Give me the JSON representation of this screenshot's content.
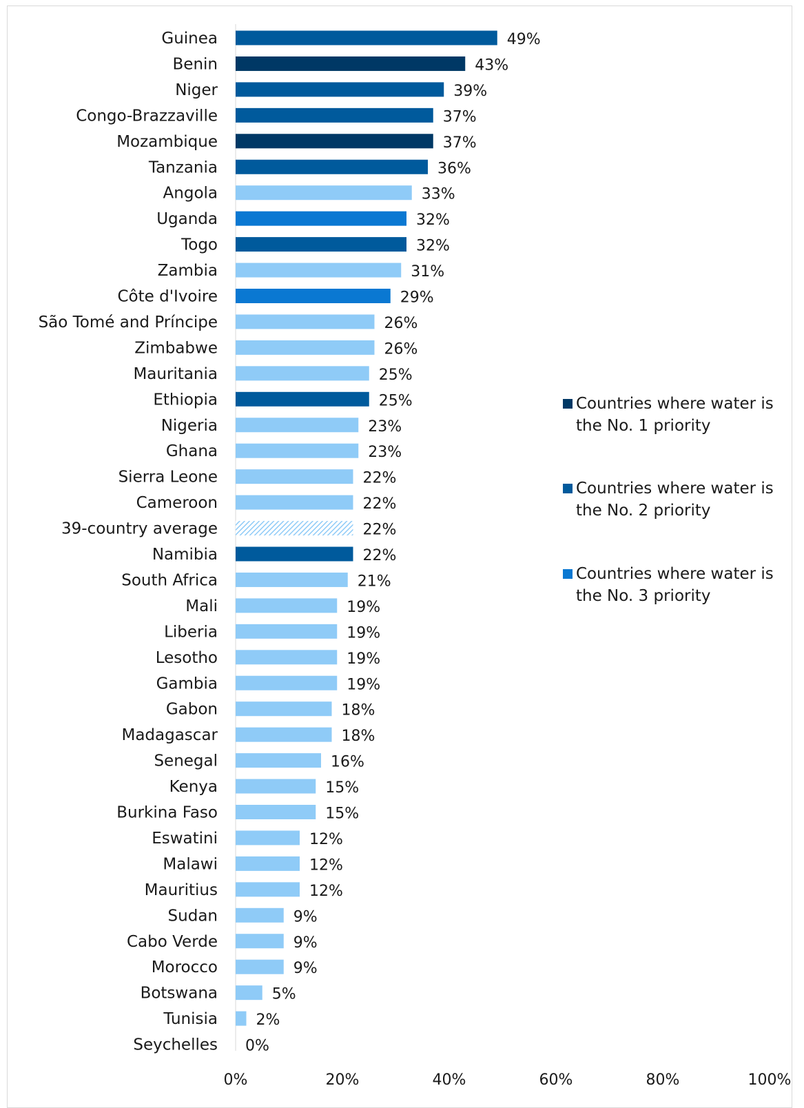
{
  "colors": {
    "priority1": "#003865",
    "priority2": "#005a9c",
    "priority3": "#0a78d2",
    "other": "#8fcbf7",
    "average_hatch": "#8fcbf7",
    "axis": "#d9d9d9"
  },
  "legend": [
    {
      "text": "Countries where water is the No. 1 priority",
      "color_key": "priority1",
      "icon": "square-swatch"
    },
    {
      "text": "Countries where water is the No. 2 priority",
      "color_key": "priority2",
      "icon": "square-swatch"
    },
    {
      "text": "Countries where water is the No. 3 priority",
      "color_key": "priority3",
      "icon": "square-swatch"
    }
  ],
  "chart_data": {
    "type": "bar",
    "orientation": "horizontal",
    "xlim": [
      0,
      100
    ],
    "x_ticks": [
      "0%",
      "20%",
      "40%",
      "60%",
      "80%",
      "100%"
    ],
    "grid": false,
    "legend_position": "right",
    "categories": [
      "Guinea",
      "Benin",
      "Niger",
      "Congo-Brazzaville",
      "Mozambique",
      "Tanzania",
      "Angola",
      "Uganda",
      "Togo",
      "Zambia",
      "Côte d'Ivoire",
      "São Tomé and Príncipe",
      "Zimbabwe",
      "Mauritania",
      "Ethiopia",
      "Nigeria",
      "Ghana",
      "Sierra Leone",
      "Cameroon",
      "39-country average",
      "Namibia",
      "South Africa",
      "Mali",
      "Liberia",
      "Lesotho",
      "Gambia",
      "Gabon",
      "Madagascar",
      "Senegal",
      "Kenya",
      "Burkina Faso",
      "Eswatini",
      "Malawi",
      "Mauritius",
      "Sudan",
      "Cabo Verde",
      "Morocco",
      "Botswana",
      "Tunisia",
      "Seychelles"
    ],
    "values": [
      49,
      43,
      39,
      37,
      37,
      36,
      33,
      32,
      32,
      31,
      29,
      26,
      26,
      25,
      25,
      23,
      23,
      22,
      22,
      22,
      22,
      21,
      19,
      19,
      19,
      19,
      18,
      18,
      16,
      15,
      15,
      12,
      12,
      12,
      9,
      9,
      9,
      5,
      2,
      0
    ],
    "value_labels": [
      "49%",
      "43%",
      "39%",
      "37%",
      "37%",
      "36%",
      "33%",
      "32%",
      "32%",
      "31%",
      "29%",
      "26%",
      "26%",
      "25%",
      "25%",
      "23%",
      "23%",
      "22%",
      "22%",
      "22%",
      "22%",
      "21%",
      "19%",
      "19%",
      "19%",
      "19%",
      "18%",
      "18%",
      "16%",
      "15%",
      "15%",
      "12%",
      "12%",
      "12%",
      "9%",
      "9%",
      "9%",
      "5%",
      "2%",
      "0%"
    ],
    "groups": [
      "priority2",
      "priority1",
      "priority2",
      "priority2",
      "priority1",
      "priority2",
      "other",
      "priority3",
      "priority2",
      "other",
      "priority3",
      "other",
      "other",
      "other",
      "priority2",
      "other",
      "other",
      "other",
      "other",
      "average",
      "priority2",
      "other",
      "other",
      "other",
      "other",
      "other",
      "other",
      "other",
      "other",
      "other",
      "other",
      "other",
      "other",
      "other",
      "other",
      "other",
      "other",
      "other",
      "other",
      "other"
    ]
  }
}
